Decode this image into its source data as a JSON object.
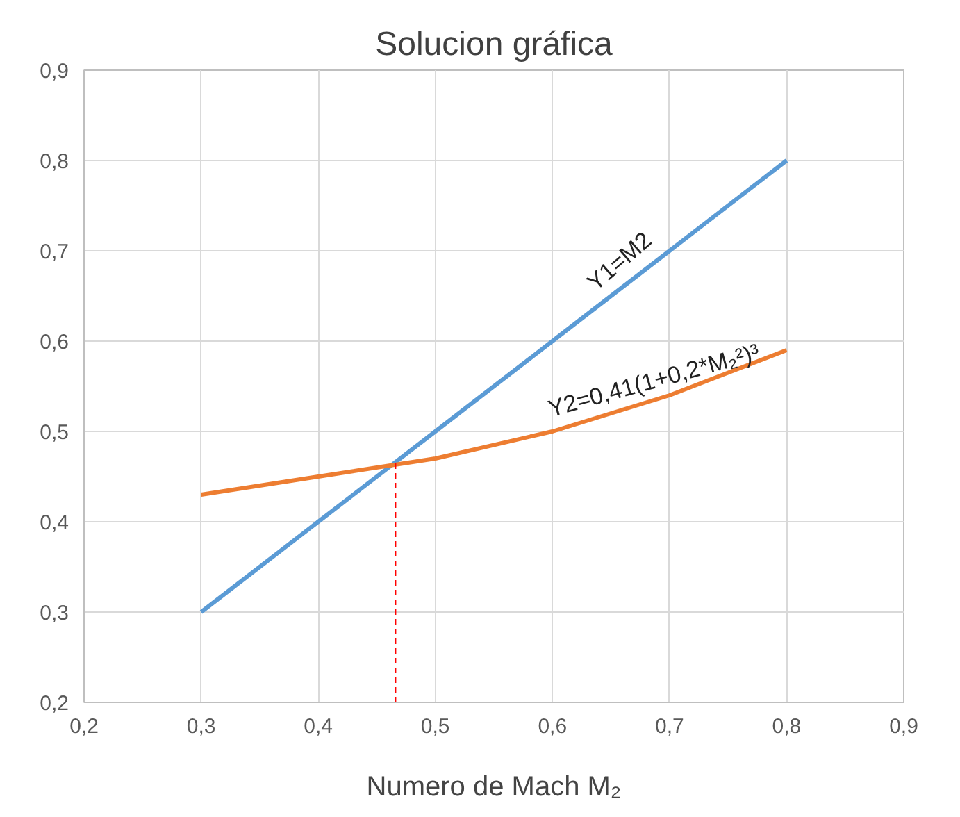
{
  "chart_data": {
    "type": "line",
    "title": "Solucion gráfica",
    "xlabel": "Numero de Mach M₂",
    "x": [
      0.3,
      0.4,
      0.5,
      0.6,
      0.7,
      0.8
    ],
    "series": [
      {
        "color": "#5b9bd5",
        "values": [
          0.3,
          0.4,
          0.5,
          0.6,
          0.7,
          0.8
        ]
      },
      {
        "color": "#ed7d31",
        "values": [
          0.43,
          0.45,
          0.47,
          0.5,
          0.54,
          0.59
        ]
      },
      {
        "color": "#ff0000",
        "x": [
          0.466,
          0.466
        ],
        "values": [
          0.2,
          0.466
        ],
        "line_style": "dashed"
      }
    ],
    "annotations": [
      {
        "text": "Y1=M2",
        "x": 0.64,
        "y": 0.65
      },
      {
        "text": "Y2=0,41(1+0,2*M₂²)³",
        "x": 0.6,
        "y": 0.51
      }
    ],
    "xlim": [
      0.2,
      0.9
    ],
    "ylim": [
      0.2,
      0.9
    ],
    "xticks": [
      {
        "value": 0.2,
        "label": "0,2"
      },
      {
        "value": 0.3,
        "label": "0,3"
      },
      {
        "value": 0.4,
        "label": "0,4"
      },
      {
        "value": 0.5,
        "label": "0,5"
      },
      {
        "value": 0.6,
        "label": "0,6"
      },
      {
        "value": 0.7,
        "label": "0,7"
      },
      {
        "value": 0.8,
        "label": "0,8"
      },
      {
        "value": 0.9,
        "label": "0,9"
      }
    ],
    "yticks": [
      {
        "value": 0.2,
        "label": "0,2"
      },
      {
        "value": 0.3,
        "label": "0,3"
      },
      {
        "value": 0.4,
        "label": "0,4"
      },
      {
        "value": 0.5,
        "label": "0,5"
      },
      {
        "value": 0.6,
        "label": "0,6"
      },
      {
        "value": 0.7,
        "label": "0,7"
      },
      {
        "value": 0.8,
        "label": "0,8"
      },
      {
        "value": 0.9,
        "label": "0,9"
      }
    ],
    "grid": true
  }
}
